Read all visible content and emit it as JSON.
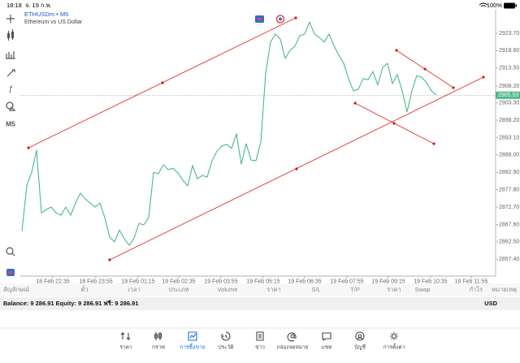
{
  "status_bar": {
    "time": "18:18",
    "date": "จ. 19 ก.พ.",
    "battery": "100%"
  },
  "toolbar": {
    "timeframe": "M5"
  },
  "chart_data": {
    "type": "line",
    "title": "ETHUSDm • M5",
    "subtitle": "Ethereum vs US Dollar",
    "color": "#4cb88a",
    "grid": false,
    "values": [
      2865.6,
      2879.1,
      2882.9,
      2889.4,
      2871.0,
      2872.0,
      2872.7,
      2871.0,
      2870.3,
      2872.7,
      2870.3,
      2873.9,
      2876.8,
      2875.1,
      2873.9,
      2872.7,
      2873.9,
      2869.6,
      2863.9,
      2862.5,
      2866.0,
      2863.4,
      2861.5,
      2863.6,
      2867.9,
      2867.5,
      2869.6,
      2882.9,
      2882.5,
      2885.1,
      2883.7,
      2884.1,
      2882.7,
      2880.6,
      2878.9,
      2884.9,
      2881.0,
      2882.0,
      2881.5,
      2886.3,
      2889.1,
      2890.6,
      2891.1,
      2889.9,
      2894.2,
      2885.3,
      2891.3,
      2886.5,
      2886.3,
      2891.8,
      2912.0,
      2921.1,
      2923.5,
      2922.0,
      2916.3,
      2918.7,
      2919.9,
      2923.0,
      2923.5,
      2927.0,
      2923.5,
      2922.5,
      2921.1,
      2923.5,
      2920.1,
      2917.3,
      2914.9,
      2910.4,
      2906.8,
      2907.3,
      2910.4,
      2910.1,
      2912.5,
      2908.5,
      2913.7,
      2914.9,
      2908.9,
      2911.6,
      2906.8,
      2900.6,
      2906.8,
      2911.3,
      2910.8,
      2909.2,
      2906.8,
      2905.6
    ],
    "xlim": [
      -0.333,
      97.17
    ],
    "xticks": [
      {
        "value": 6.33,
        "label": "18 Feb 22:35"
      },
      {
        "value": 15.17,
        "label": "18 Feb 23:55"
      },
      {
        "value": 23.83,
        "label": "19 Feb 01:15"
      },
      {
        "value": 32.17,
        "label": "19 Feb 02:35"
      },
      {
        "value": 40.83,
        "label": "19 Feb 03:55"
      },
      {
        "value": 49.5,
        "label": "19 Feb 05:15"
      },
      {
        "value": 58,
        "label": "19 Feb 06:35"
      },
      {
        "value": 66.67,
        "label": "19 Feb 07:55"
      },
      {
        "value": 75.17,
        "label": "19 Feb 09:15"
      },
      {
        "value": 83.83,
        "label": "19 Feb 10:35"
      },
      {
        "value": 92.17,
        "label": "19 Feb 11:55"
      }
    ],
    "ylim": [
      2852.45,
      2930.61
    ],
    "yticks": [
      {
        "value": 2923.7,
        "label": "2923.70"
      },
      {
        "value": 2918.6,
        "label": "2918.60"
      },
      {
        "value": 2913.5,
        "label": "2913.50"
      },
      {
        "value": 2908.2,
        "label": "2908.20"
      },
      {
        "value": 2903.3,
        "label": "2903.30"
      },
      {
        "value": 2898.2,
        "label": "2898.20"
      },
      {
        "value": 2893.1,
        "label": "2893.10"
      },
      {
        "value": 2888.0,
        "label": "2888.00"
      },
      {
        "value": 2882.9,
        "label": "2882.90"
      },
      {
        "value": 2877.8,
        "label": "2877.80"
      },
      {
        "value": 2872.7,
        "label": "2872.70"
      },
      {
        "value": 2867.6,
        "label": "2867.60"
      },
      {
        "value": 2862.5,
        "label": "2862.50"
      },
      {
        "value": 2857.4,
        "label": "2857.40"
      }
    ],
    "current_price": 2905.53
  },
  "table": {
    "columns": [
      "สัญลักษณ์",
      "ตั๋ว",
      "เวลา",
      "ประเภท",
      "Volume",
      "ราคา",
      "S/L",
      "T/P",
      "ราคา",
      "Swap",
      "กำไร",
      "หมายเหตุ"
    ]
  },
  "account": {
    "summary": "Balance: 9 286.91 Equity: 9 286.91 ฟรี: 9 286.91",
    "currency": "USD"
  },
  "tabs": {
    "items": [
      "ราคา",
      "กราฟ",
      "การซื้อขาย",
      "ประวัติ",
      "ข่าว",
      "กล่องจดหมาย",
      "แชท",
      "บัญชี",
      "การตั้งค่า"
    ],
    "active": 2
  }
}
